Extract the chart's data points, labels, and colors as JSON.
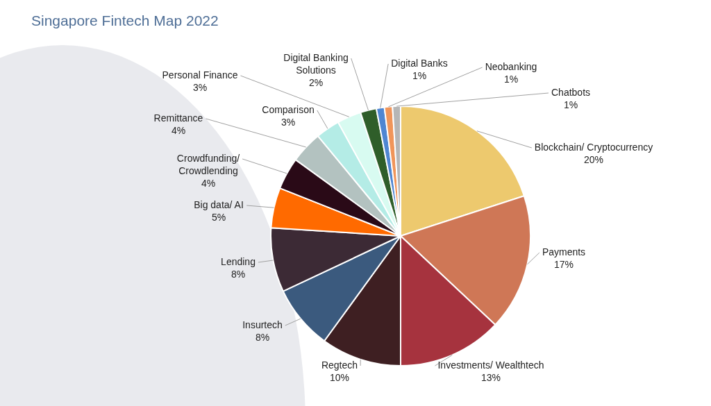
{
  "chart_data": {
    "type": "pie",
    "title": "Singapore Fintech Map 2022",
    "categories": [
      "Blockchain/ Cryptocurrency",
      "Payments",
      "Investments/ Wealthtech",
      "Regtech",
      "Insurtech",
      "Lending",
      "Big data/ AI",
      "Crowdfunding/ Crowdlending",
      "Remittance",
      "Comparison",
      "Personal Finance",
      "Digital Banking Solutions",
      "Digital Banks",
      "Neobanking",
      "Chatbots"
    ],
    "values": [
      20,
      17,
      13,
      10,
      8,
      8,
      5,
      4,
      4,
      3,
      3,
      2,
      1,
      1,
      1
    ],
    "value_labels": [
      "20%",
      "17%",
      "13%",
      "10%",
      "8%",
      "8%",
      "5%",
      "4%",
      "4%",
      "3%",
      "3%",
      "2%",
      "1%",
      "1%",
      "1%"
    ],
    "colors": [
      "#edc96e",
      "#cf7756",
      "#a6333e",
      "#3e1f22",
      "#3b5a7e",
      "#3c2a35",
      "#ff6a00",
      "#2a0a17",
      "#b3c2c0",
      "#b4ece6",
      "#d8fbf1",
      "#2f5e2a",
      "#4f86d2",
      "#f0955a",
      "#b6b6b6"
    ],
    "legend": false
  }
}
